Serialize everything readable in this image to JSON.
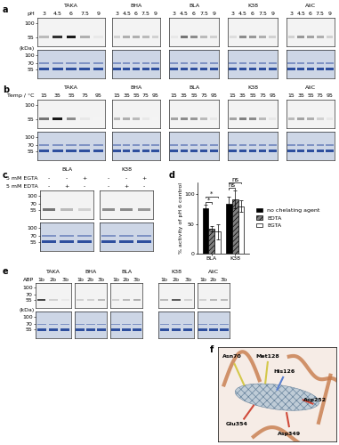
{
  "panel_labels": [
    "a",
    "b",
    "c",
    "d",
    "e",
    "f"
  ],
  "gels": {
    "a": {
      "row_title": "pH",
      "unit": "(kDa)",
      "markers_top": [
        100,
        55
      ],
      "markers_bottom": [
        100,
        70,
        55
      ],
      "groups": [
        {
          "name": "TAKA",
          "lanes": [
            "3",
            "4.5",
            "6",
            "7.5",
            "9"
          ],
          "band_intensity": [
            0.3,
            0.9,
            1.0,
            0.35,
            0.1
          ]
        },
        {
          "name": "BHA",
          "lanes": [
            "3",
            "4.5",
            "6",
            "7.5",
            "9"
          ],
          "band_intensity": [
            0.2,
            0.35,
            0.35,
            0.3,
            0.2
          ]
        },
        {
          "name": "BLA",
          "lanes": [
            "3",
            "4.5",
            "6",
            "7.5",
            "9"
          ],
          "band_intensity": [
            0.1,
            0.6,
            0.5,
            0.3,
            0.2
          ]
        },
        {
          "name": "K38",
          "lanes": [
            "3",
            "4.5",
            "6",
            "7.5",
            "9"
          ],
          "band_intensity": [
            0.15,
            0.5,
            0.45,
            0.35,
            0.2
          ]
        },
        {
          "name": "AliC",
          "lanes": [
            "3",
            "4.5",
            "6",
            "7.5",
            "9"
          ],
          "band_intensity": [
            0.2,
            0.45,
            0.4,
            0.35,
            0.2
          ]
        }
      ]
    },
    "b": {
      "row_title": "Temp / °C",
      "markers_top": [
        100,
        55
      ],
      "markers_bottom": [
        100,
        70,
        55
      ],
      "groups": [
        {
          "name": "TAKA",
          "lanes": [
            "15",
            "35",
            "55",
            "75",
            "95"
          ],
          "band_intensity": [
            0.6,
            1.0,
            0.5,
            0.1,
            0.05
          ]
        },
        {
          "name": "BHA",
          "lanes": [
            "15",
            "35",
            "55",
            "75",
            "95"
          ],
          "band_intensity": [
            0.3,
            0.35,
            0.3,
            0.1,
            0.05
          ]
        },
        {
          "name": "BLA",
          "lanes": [
            "15",
            "35",
            "55",
            "75",
            "95"
          ],
          "band_intensity": [
            0.4,
            0.5,
            0.45,
            0.3,
            0.1
          ]
        },
        {
          "name": "K38",
          "lanes": [
            "15",
            "35",
            "55",
            "75",
            "95"
          ],
          "band_intensity": [
            0.4,
            0.55,
            0.5,
            0.3,
            0.1
          ]
        },
        {
          "name": "AliC",
          "lanes": [
            "15",
            "35",
            "55",
            "75",
            "95"
          ],
          "band_intensity": [
            0.3,
            0.4,
            0.35,
            0.2,
            0.1
          ]
        }
      ]
    },
    "c": {
      "row_titles": [
        "5 mM EGTA",
        "5 mM EDTA"
      ],
      "markers_top": [
        100,
        70,
        55
      ],
      "markers_bottom": [
        100,
        70,
        55
      ],
      "groups": [
        {
          "name": "BLA",
          "lanes": [
            [
              "-",
              "-",
              "+"
            ],
            [
              "-",
              "+",
              "-"
            ]
          ],
          "band_intensity": [
            0.6,
            0.3,
            0.2
          ]
        },
        {
          "name": "K38",
          "lanes": [
            [
              "-",
              "-",
              "+"
            ],
            [
              "-",
              "+",
              "-"
            ]
          ],
          "band_intensity": [
            0.5,
            0.5,
            0.45
          ]
        }
      ]
    },
    "e": {
      "row_title": "ABP",
      "unit": "(kDa)",
      "markers_top": [
        100,
        70,
        55
      ],
      "markers_bottom": [
        100,
        70,
        55
      ],
      "groups": [
        {
          "name": "TAKA",
          "lanes": [
            "1b",
            "2b",
            "3b"
          ],
          "band_intensity": [
            0.8,
            0.2,
            0.1
          ]
        },
        {
          "name": "BHA",
          "lanes": [
            "1b",
            "2b",
            "3b"
          ],
          "band_intensity": [
            0.2,
            0.2,
            0.3
          ]
        },
        {
          "name": "BLA",
          "lanes": [
            "1b",
            "2b",
            "3b"
          ],
          "band_intensity": [
            0.2,
            0.3,
            0.35
          ]
        },
        {
          "name": "K38",
          "lanes": [
            "1b",
            "2b",
            "3b"
          ],
          "band_intensity": [
            0.3,
            0.7,
            0.2
          ]
        },
        {
          "name": "AliC",
          "lanes": [
            "1b",
            "2b",
            "3b"
          ],
          "band_intensity": [
            0.2,
            0.3,
            0.3
          ]
        }
      ]
    }
  },
  "chart_data": {
    "type": "bar",
    "y_label": "% activity of pH 6 control",
    "categories": [
      "BLA",
      "K38"
    ],
    "series": [
      {
        "name": "no chelating agent",
        "color": "#000000",
        "values": [
          77,
          84
        ],
        "errors": [
          6,
          12
        ]
      },
      {
        "name": "EDTA",
        "color": "#808080",
        "values": [
          42,
          92
        ],
        "errors": [
          4,
          15
        ]
      },
      {
        "name": "EGTA",
        "color": "#ffffff",
        "values": [
          37,
          80
        ],
        "errors": [
          13,
          10
        ]
      }
    ],
    "ylim": [
      0,
      120
    ],
    "yticks": [
      0,
      50,
      100
    ],
    "legend": "right",
    "annotations": [
      {
        "text": "*",
        "category": "BLA",
        "between": [
          "no chelating agent",
          "EDTA"
        ]
      },
      {
        "text": "*",
        "category": "BLA",
        "between": [
          "no chelating agent",
          "EGTA"
        ]
      },
      {
        "text": "ns",
        "category": "K38",
        "between": [
          "no chelating agent",
          "EDTA"
        ]
      },
      {
        "text": "ns",
        "category": "K38",
        "between": [
          "no chelating agent",
          "EGTA"
        ]
      }
    ]
  },
  "structure": {
    "labels": [
      "Asn70",
      "Met128",
      "His126",
      "Asp252",
      "Glu354",
      "Asp349"
    ]
  }
}
